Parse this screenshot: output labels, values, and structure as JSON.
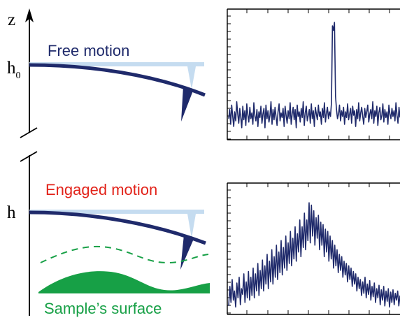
{
  "axis": {
    "label": "z"
  },
  "free": {
    "title": "Free motion",
    "height_label": "h",
    "height_subscript": "0"
  },
  "engaged": {
    "title": "Engaged motion",
    "height_label": "h"
  },
  "surface": {
    "label": "Sample’s surface"
  },
  "colors": {
    "navy": "#1f2a6b",
    "ghost": "#c5dcf0",
    "red": "#e2231a",
    "green": "#17a046",
    "black": "#000000"
  },
  "spectra": [
    {
      "name": "free-motion-spectrum",
      "ylim": [
        0,
        1
      ],
      "values": [
        0.1,
        0.18,
        0.05,
        0.22,
        0.12,
        0.03,
        0.16,
        0.08,
        0.25,
        0.14,
        0.06,
        0.19,
        0.11,
        0.02,
        0.21,
        0.09,
        0.17,
        0.04,
        0.23,
        0.13,
        0.07,
        0.2,
        0.1,
        0.15,
        0.05,
        0.24,
        0.12,
        0.08,
        0.18,
        0.03,
        0.16,
        0.11,
        0.21,
        0.06,
        0.14,
        0.19,
        0.02,
        0.22,
        0.1,
        0.17,
        0.07,
        0.13,
        0.25,
        0.05,
        0.18,
        0.09,
        0.2,
        0.12,
        0.04,
        0.16,
        0.23,
        0.08,
        0.15,
        0.11,
        0.19,
        0.03,
        0.21,
        0.13,
        0.06,
        0.17,
        0.1,
        0.24,
        0.05,
        0.14,
        0.2,
        0.09,
        0.18,
        0.02,
        0.22,
        0.12,
        0.16,
        0.07,
        0.19,
        0.11,
        0.25,
        0.04,
        0.15,
        0.21,
        0.08,
        0.13,
        0.18,
        0.06,
        0.23,
        0.1,
        0.17,
        0.03,
        0.2,
        0.14,
        0.09,
        0.22,
        0.12,
        0.16,
        0.05,
        0.19,
        0.11,
        0.24,
        0.07,
        0.15,
        0.2,
        0.1,
        0.16,
        0.12,
        0.24,
        0.92,
        0.88,
        0.95,
        0.3,
        0.18,
        0.1,
        0.14,
        0.22,
        0.08,
        0.17,
        0.12,
        0.2,
        0.05,
        0.16,
        0.11,
        0.23,
        0.09,
        0.14,
        0.19,
        0.06,
        0.21,
        0.13,
        0.17,
        0.03,
        0.18,
        0.1,
        0.24,
        0.08,
        0.15,
        0.2,
        0.12,
        0.05,
        0.19,
        0.11,
        0.16,
        0.22,
        0.07,
        0.14,
        0.18,
        0.1,
        0.25,
        0.06,
        0.17,
        0.12,
        0.21,
        0.04,
        0.15,
        0.2,
        0.09,
        0.13,
        0.23,
        0.07,
        0.18,
        0.11,
        0.16,
        0.05,
        0.22,
        0.14,
        0.1,
        0.19,
        0.12,
        0.17,
        0.08,
        0.24,
        0.13,
        0.06,
        0.2,
        0.11
      ]
    },
    {
      "name": "engaged-motion-spectrum",
      "ylim": [
        0,
        1
      ],
      "values": [
        0.05,
        0.22,
        0.08,
        0.28,
        0.1,
        0.18,
        0.04,
        0.25,
        0.12,
        0.3,
        0.06,
        0.2,
        0.15,
        0.33,
        0.08,
        0.26,
        0.12,
        0.35,
        0.1,
        0.3,
        0.14,
        0.38,
        0.12,
        0.33,
        0.18,
        0.42,
        0.14,
        0.36,
        0.2,
        0.45,
        0.18,
        0.4,
        0.24,
        0.5,
        0.2,
        0.44,
        0.26,
        0.54,
        0.24,
        0.48,
        0.3,
        0.58,
        0.28,
        0.52,
        0.34,
        0.62,
        0.32,
        0.56,
        0.38,
        0.66,
        0.36,
        0.6,
        0.42,
        0.7,
        0.4,
        0.64,
        0.46,
        0.74,
        0.44,
        0.68,
        0.52,
        0.8,
        0.48,
        0.74,
        0.56,
        0.86,
        0.54,
        0.8,
        0.62,
        0.95,
        0.6,
        0.93,
        0.66,
        0.88,
        0.58,
        0.82,
        0.64,
        0.84,
        0.54,
        0.78,
        0.58,
        0.76,
        0.48,
        0.72,
        0.52,
        0.7,
        0.44,
        0.66,
        0.46,
        0.62,
        0.38,
        0.58,
        0.4,
        0.54,
        0.34,
        0.5,
        0.36,
        0.48,
        0.3,
        0.44,
        0.32,
        0.42,
        0.26,
        0.4,
        0.28,
        0.38,
        0.22,
        0.35,
        0.24,
        0.33,
        0.18,
        0.3,
        0.2,
        0.28,
        0.14,
        0.26,
        0.16,
        0.3,
        0.12,
        0.24,
        0.15,
        0.27,
        0.1,
        0.22,
        0.13,
        0.25,
        0.08,
        0.2,
        0.12,
        0.23,
        0.06,
        0.19,
        0.1,
        0.22,
        0.05,
        0.18,
        0.09,
        0.2,
        0.04,
        0.17,
        0.08,
        0.19,
        0.06,
        0.16,
        0.1,
        0.18,
        0.05,
        0.14
      ]
    }
  ]
}
